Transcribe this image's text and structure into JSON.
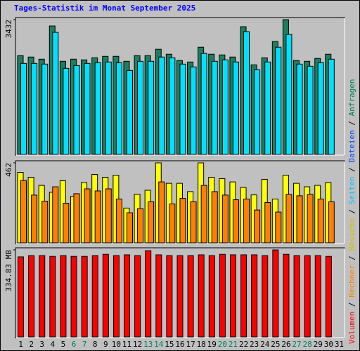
{
  "chart_data": [
    {
      "type": "bar",
      "title": "Tages-Statistik im Monat September 2025",
      "ylim": [
        0,
        3432
      ],
      "yticks": [
        3432
      ],
      "series": [
        {
          "color": "#1a8060",
          "values": [
            2516,
            2480,
            2426,
            3271,
            2372,
            2426,
            2408,
            2462,
            2498,
            2498,
            2372,
            2516,
            2516,
            2678,
            2552,
            2390,
            2354,
            2731,
            2552,
            2534,
            2480,
            3253,
            2282,
            2462,
            2875,
            3432,
            2390,
            2372,
            2444,
            2552,
            null
          ]
        },
        {
          "color": "#00e0ff",
          "values": [
            2318,
            2318,
            2300,
            3109,
            2192,
            2264,
            2318,
            2336,
            2354,
            2336,
            2138,
            2372,
            2372,
            2480,
            2462,
            2300,
            2228,
            2570,
            2372,
            2408,
            2354,
            3127,
            2156,
            2354,
            2731,
            3055,
            2300,
            2246,
            2336,
            2426,
            null
          ]
        }
      ]
    },
    {
      "type": "bar",
      "ylim": [
        0,
        462
      ],
      "yticks": [
        462
      ],
      "series": [
        {
          "color": "#ffff00",
          "values": [
            407,
            379,
            332,
            292,
            359,
            269,
            348,
            395,
            379,
            391,
            201,
            280,
            304,
            462,
            344,
            344,
            296,
            462,
            379,
            371,
            352,
            320,
            277,
            367,
            253,
            391,
            344,
            324,
            332,
            348,
            null
          ]
        },
        {
          "color": "#ff8000",
          "values": [
            360,
            276,
            241,
            324,
            229,
            284,
            312,
            300,
            312,
            253,
            174,
            198,
            237,
            352,
            225,
            257,
            237,
            332,
            296,
            276,
            249,
            253,
            190,
            233,
            178,
            280,
            272,
            280,
            253,
            237,
            null
          ]
        }
      ]
    },
    {
      "type": "bar",
      "ylim": [
        0,
        334.83
      ],
      "yticks": [
        {
          "value": 334.83,
          "label": "334.83 MB"
        }
      ],
      "series": [
        {
          "color": "#ff0000",
          "values": [
            308,
            313,
            313,
            310,
            313,
            310,
            310,
            313,
            318,
            313,
            316,
            313,
            332,
            316,
            313,
            313,
            313,
            316,
            313,
            318,
            316,
            316,
            316,
            313,
            334.83,
            318,
            313,
            313,
            313,
            310,
            null
          ]
        }
      ],
      "categories": [
        "1",
        "2",
        "3",
        "4",
        "5",
        "6",
        "7",
        "8",
        "9",
        "10",
        "11",
        "12",
        "13",
        "14",
        "15",
        "16",
        "17",
        "18",
        "19",
        "20",
        "21",
        "22",
        "23",
        "24",
        "25",
        "26",
        "27",
        "28",
        "29",
        "30",
        "31"
      ],
      "category_colors": [
        "#000000",
        "#000000",
        "#000000",
        "#000000",
        "#000000",
        "#00805c",
        "#00805c",
        "#000000",
        "#000000",
        "#000000",
        "#000000",
        "#000000",
        "#00805c",
        "#00805c",
        "#000000",
        "#000000",
        "#000000",
        "#000000",
        "#000000",
        "#00805c",
        "#00805c",
        "#000000",
        "#000000",
        "#000000",
        "#000000",
        "#000000",
        "#00805c",
        "#00805c",
        "#000000",
        "#000000",
        "#000000"
      ]
    }
  ],
  "legend": [
    {
      "name": "Volumen",
      "color": "#ff0000"
    },
    {
      "name": "Rechner",
      "color": "#ff8000"
    },
    {
      "name": "Besuche",
      "color": "#d0c000"
    },
    {
      "name": "Seiten",
      "color": "#00c0ff"
    },
    {
      "name": "Dateien",
      "color": "#0040ff"
    },
    {
      "name": "Anfragen",
      "color": "#00805c"
    }
  ],
  "legend_separator": " / "
}
